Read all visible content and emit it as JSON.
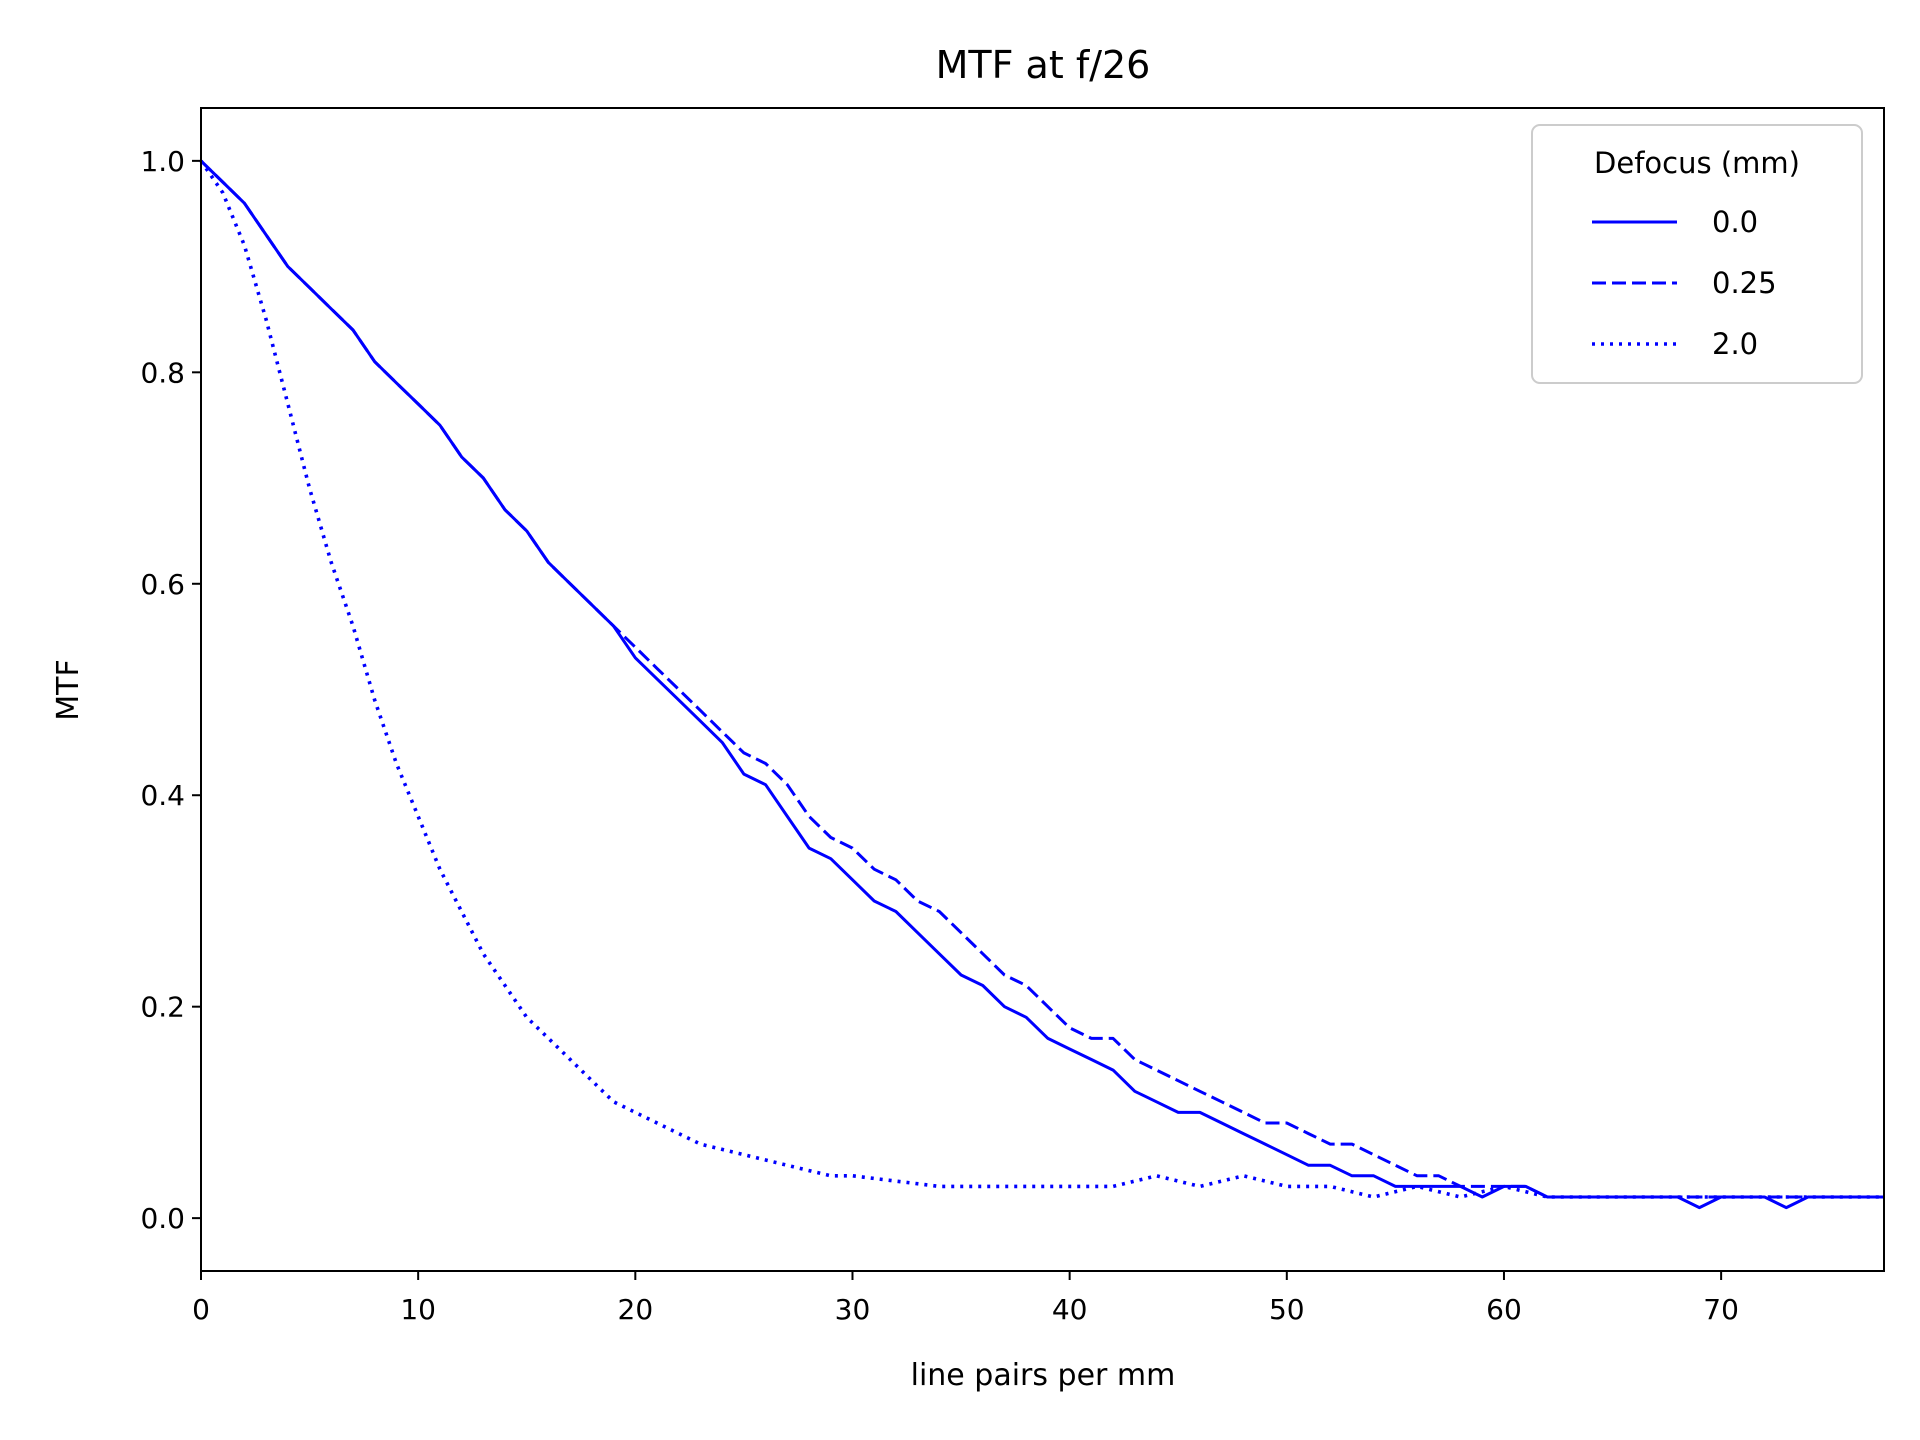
{
  "chart_data": {
    "type": "line",
    "title": "MTF at f/26",
    "xlabel": "line pairs per mm",
    "ylabel": "MTF",
    "xlim": [
      0,
      77.5
    ],
    "ylim": [
      -0.05,
      1.05
    ],
    "xticks": [
      0,
      10,
      20,
      30,
      40,
      50,
      60,
      70
    ],
    "xtick_labels": [
      "0",
      "10",
      "20",
      "30",
      "40",
      "50",
      "60",
      "70"
    ],
    "yticks": [
      0.0,
      0.2,
      0.4,
      0.6,
      0.8,
      1.0
    ],
    "ytick_labels": [
      "0.0",
      "0.2",
      "0.4",
      "0.6",
      "0.8",
      "1.0"
    ],
    "grid": false,
    "legend": {
      "title": "Defocus (mm)",
      "position": "top-right"
    },
    "color": "#0000ff",
    "series": [
      {
        "name": "0.0",
        "style": "solid",
        "x": [
          0,
          1,
          2,
          3,
          4,
          5,
          6,
          7,
          8,
          9,
          10,
          11,
          12,
          13,
          14,
          15,
          16,
          17,
          18,
          19,
          20,
          21,
          22,
          23,
          24,
          25,
          26,
          27,
          28,
          29,
          30,
          31,
          32,
          33,
          34,
          35,
          36,
          37,
          38,
          39,
          40,
          41,
          42,
          43,
          44,
          45,
          46,
          47,
          48,
          49,
          50,
          51,
          52,
          53,
          54,
          55,
          56,
          57,
          58,
          59,
          60,
          61,
          62,
          63,
          64,
          65,
          66,
          67,
          68,
          69,
          70,
          71,
          72,
          73,
          74,
          75,
          76,
          77.5
        ],
        "y": [
          1.0,
          0.98,
          0.96,
          0.93,
          0.9,
          0.88,
          0.86,
          0.84,
          0.81,
          0.79,
          0.77,
          0.75,
          0.72,
          0.7,
          0.67,
          0.65,
          0.62,
          0.6,
          0.58,
          0.56,
          0.53,
          0.51,
          0.49,
          0.47,
          0.45,
          0.42,
          0.41,
          0.38,
          0.35,
          0.34,
          0.32,
          0.3,
          0.29,
          0.27,
          0.25,
          0.23,
          0.22,
          0.2,
          0.19,
          0.17,
          0.16,
          0.15,
          0.14,
          0.12,
          0.11,
          0.1,
          0.1,
          0.09,
          0.08,
          0.07,
          0.06,
          0.05,
          0.05,
          0.04,
          0.04,
          0.03,
          0.03,
          0.03,
          0.03,
          0.02,
          0.03,
          0.03,
          0.02,
          0.02,
          0.02,
          0.02,
          0.02,
          0.02,
          0.02,
          0.01,
          0.02,
          0.02,
          0.02,
          0.01,
          0.02,
          0.02,
          0.02,
          0.02
        ]
      },
      {
        "name": "0.25",
        "style": "dashed",
        "x": [
          0,
          1,
          2,
          3,
          4,
          5,
          6,
          7,
          8,
          9,
          10,
          11,
          12,
          13,
          14,
          15,
          16,
          17,
          18,
          19,
          20,
          21,
          22,
          23,
          24,
          25,
          26,
          27,
          28,
          29,
          30,
          31,
          32,
          33,
          34,
          35,
          36,
          37,
          38,
          39,
          40,
          41,
          42,
          43,
          44,
          45,
          46,
          47,
          48,
          49,
          50,
          51,
          52,
          53,
          54,
          55,
          56,
          57,
          58,
          59,
          60,
          61,
          62,
          63,
          64,
          65,
          66,
          67,
          68,
          69,
          70,
          71,
          72,
          73,
          74,
          75,
          76,
          77.5
        ],
        "y": [
          1.0,
          0.98,
          0.96,
          0.93,
          0.9,
          0.88,
          0.86,
          0.84,
          0.81,
          0.79,
          0.77,
          0.75,
          0.72,
          0.7,
          0.67,
          0.65,
          0.62,
          0.6,
          0.58,
          0.56,
          0.54,
          0.52,
          0.5,
          0.48,
          0.46,
          0.44,
          0.43,
          0.41,
          0.38,
          0.36,
          0.35,
          0.33,
          0.32,
          0.3,
          0.29,
          0.27,
          0.25,
          0.23,
          0.22,
          0.2,
          0.18,
          0.17,
          0.17,
          0.15,
          0.14,
          0.13,
          0.12,
          0.11,
          0.1,
          0.09,
          0.09,
          0.08,
          0.07,
          0.07,
          0.06,
          0.05,
          0.04,
          0.04,
          0.03,
          0.03,
          0.03,
          0.03,
          0.02,
          0.02,
          0.02,
          0.02,
          0.02,
          0.02,
          0.02,
          0.02,
          0.02,
          0.02,
          0.02,
          0.02,
          0.02,
          0.02,
          0.02,
          0.02
        ]
      },
      {
        "name": "2.0",
        "style": "dotted",
        "x": [
          0,
          1,
          2,
          3,
          4,
          5,
          6,
          7,
          8,
          9,
          10,
          11,
          12,
          13,
          14,
          15,
          16,
          17,
          18,
          19,
          20,
          21,
          22,
          23,
          24,
          25,
          26,
          27,
          28,
          29,
          30,
          32,
          34,
          36,
          38,
          40,
          42,
          44,
          46,
          48,
          50,
          52,
          54,
          56,
          58,
          60,
          62,
          64,
          66,
          68,
          70,
          72,
          74,
          76,
          77.5
        ],
        "y": [
          1.0,
          0.97,
          0.92,
          0.85,
          0.77,
          0.69,
          0.62,
          0.56,
          0.49,
          0.43,
          0.38,
          0.33,
          0.29,
          0.25,
          0.22,
          0.19,
          0.17,
          0.15,
          0.13,
          0.11,
          0.1,
          0.09,
          0.08,
          0.07,
          0.065,
          0.06,
          0.055,
          0.05,
          0.045,
          0.04,
          0.04,
          0.035,
          0.03,
          0.03,
          0.03,
          0.03,
          0.03,
          0.04,
          0.03,
          0.04,
          0.03,
          0.03,
          0.02,
          0.03,
          0.02,
          0.03,
          0.02,
          0.02,
          0.02,
          0.02,
          0.02,
          0.02,
          0.02,
          0.02,
          0.02
        ]
      }
    ]
  }
}
